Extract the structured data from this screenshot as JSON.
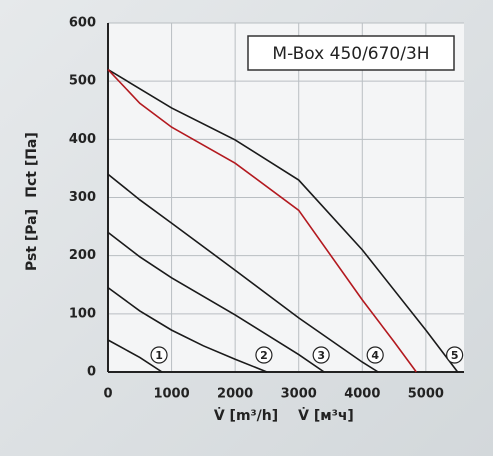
{
  "chart_data": {
    "type": "line",
    "title": "M-Box 450/670/3H",
    "x_label": [
      "V̇ [m³/h]",
      "V̇ [м³ч]"
    ],
    "y_label": [
      "Pst [Pa]",
      "Πct [Па]"
    ],
    "xlim": [
      0,
      5600
    ],
    "ylim": [
      0,
      600
    ],
    "xticks": [
      0,
      1000,
      2000,
      3000,
      4000,
      5000
    ],
    "yticks": [
      0,
      100,
      200,
      300,
      400,
      500,
      600
    ],
    "grid": true,
    "series": [
      {
        "label": "1",
        "color": "#1a1a1a",
        "x": [
          0,
          250,
          500,
          850
        ],
        "values": [
          55,
          40,
          25,
          0
        ]
      },
      {
        "label": "2",
        "color": "#1a1a1a",
        "x": [
          0,
          500,
          1000,
          1500,
          2000,
          2500
        ],
        "values": [
          145,
          105,
          72,
          45,
          22,
          0
        ]
      },
      {
        "label": "3",
        "color": "#1a1a1a",
        "x": [
          0,
          500,
          1000,
          2000,
          3000,
          3400
        ],
        "values": [
          240,
          198,
          162,
          98,
          30,
          0
        ]
      },
      {
        "label": "4",
        "color": "#1a1a1a",
        "x": [
          0,
          500,
          1000,
          2000,
          3000,
          4000,
          4250
        ],
        "values": [
          340,
          296,
          256,
          175,
          93,
          17,
          0
        ]
      },
      {
        "label": "5",
        "color": "#1a1a1a",
        "x": [
          0,
          1000,
          2000,
          3000,
          4000,
          5000,
          5500
        ],
        "values": [
          520,
          454,
          399,
          330,
          210,
          72,
          0
        ]
      },
      {
        "color": "#b3191f",
        "x": [
          0,
          500,
          1000,
          2000,
          3000,
          4000,
          4500,
          4850
        ],
        "values": [
          520,
          462,
          421,
          359,
          278,
          124,
          52,
          0
        ]
      }
    ]
  }
}
